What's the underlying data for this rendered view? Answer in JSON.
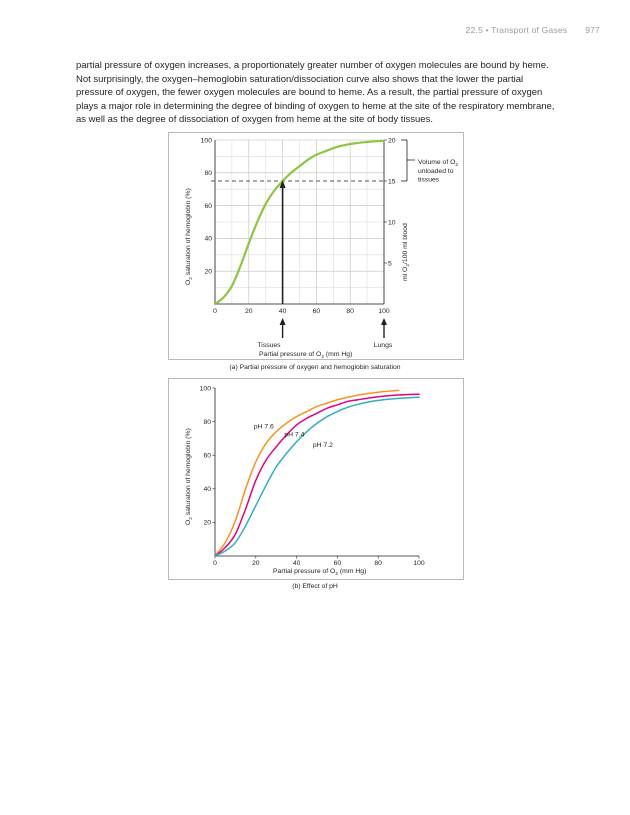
{
  "header": {
    "section": "22.5 • Transport of Gases",
    "page_number": "977"
  },
  "body_text": "partial pressure of oxygen increases, a proportionately greater number of oxygen molecules are bound by heme. Not surprisingly, the oxygen–hemoglobin saturation/dissociation curve also shows that the lower the partial pressure of oxygen, the fewer oxygen molecules are bound to heme. As a result, the partial pressure of oxygen plays a major role in determining the degree of binding of oxygen to heme at the site of the respiratory membrane, as well as the degree of dissociation of oxygen from heme at the site of body tissues.",
  "figure_a": {
    "caption": "(a) Partial pressure of oxygen and hemoglobin saturation",
    "ylabel_main": "O",
    "ylabel_sub": "2",
    "ylabel_rest": " saturation of hemoglobin (%)",
    "y2label_main": "ml O",
    "y2label_sub": "2",
    "y2label_rest": "/100 ml blood",
    "xlabel_main": "Partial pressure of O",
    "xlabel_sub": "2",
    "xlabel_rest": " (mm Hg)",
    "x_ticks": [
      "0",
      "20",
      "40",
      "60",
      "80",
      "100"
    ],
    "y_ticks": [
      "20",
      "40",
      "60",
      "80",
      "100"
    ],
    "y2_ticks": [
      "5",
      "10",
      "15",
      "20"
    ],
    "marker_tissues": "Tissues",
    "marker_lungs": "Lungs",
    "bracket_label_line1": "Volume of O",
    "bracket_label_sub": "2",
    "bracket_label_line2": "unloaded to",
    "bracket_label_line3": "tissues",
    "curve_color": "#8dc63f"
  },
  "figure_b": {
    "caption": "(b) Effect of pH",
    "ylabel_main": "O",
    "ylabel_sub": "2",
    "ylabel_rest": " saturation of hemoglobin (%)",
    "xlabel_main": "Partial pressure of O",
    "xlabel_sub": "2",
    "xlabel_rest": " (mm Hg)",
    "x_ticks": [
      "0",
      "20",
      "40",
      "60",
      "80",
      "100"
    ],
    "y_ticks": [
      "20",
      "40",
      "60",
      "80",
      "100"
    ]
  },
  "chart_data": [
    {
      "type": "line",
      "title": "",
      "xlabel": "Partial pressure of O2 (mm Hg)",
      "ylabel": "O2 saturation of hemoglobin (%)",
      "y2label": "ml O2/100 ml blood",
      "xlim": [
        0,
        100
      ],
      "ylim": [
        0,
        100
      ],
      "y2lim": [
        0,
        20
      ],
      "grid": true,
      "series": [
        {
          "color": "#8dc63f",
          "x": [
            0,
            5,
            10,
            15,
            20,
            25,
            30,
            35,
            40,
            45,
            50,
            55,
            60,
            65,
            70,
            75,
            80,
            85,
            90,
            95,
            100
          ],
          "y": [
            0,
            4,
            11,
            23,
            37,
            50,
            61,
            69,
            75,
            80,
            84,
            88,
            91,
            93,
            95,
            96.5,
            97.5,
            98.3,
            98.8,
            99.2,
            99.5
          ]
        }
      ],
      "reference_line_y": 75,
      "annotations": [
        "Tissues",
        "Lungs",
        "Volume of O2 unloaded to tissues"
      ]
    },
    {
      "type": "line",
      "title": "",
      "xlabel": "Partial pressure of O2 (mm Hg)",
      "ylabel": "O2 saturation of hemoglobin (%)",
      "xlim": [
        0,
        100
      ],
      "ylim": [
        0,
        100
      ],
      "grid": false,
      "series": [
        {
          "name": "pH 7.6",
          "color": "#f7941d",
          "x": [
            0,
            5,
            10,
            15,
            20,
            25,
            30,
            35,
            40,
            45,
            50,
            55,
            60,
            65,
            70,
            75,
            80,
            85,
            90
          ],
          "y": [
            0,
            8,
            21,
            40,
            56,
            67,
            74,
            79,
            83,
            86,
            89,
            91,
            93,
            94.5,
            95.7,
            96.7,
            97.5,
            98.1,
            98.6
          ]
        },
        {
          "name": "pH 7.4",
          "color": "#e6007e",
          "x": [
            0,
            5,
            10,
            15,
            20,
            25,
            30,
            35,
            40,
            45,
            50,
            55,
            60,
            65,
            70,
            75,
            80,
            85,
            90,
            95,
            100
          ],
          "y": [
            0,
            5,
            13,
            28,
            45,
            57,
            65,
            72,
            78,
            82,
            85,
            88,
            90,
            92,
            93,
            94,
            94.8,
            95.4,
            95.8,
            96.1,
            96.3
          ]
        },
        {
          "name": "pH 7.2",
          "color": "#2eafc2",
          "x": [
            0,
            5,
            10,
            15,
            20,
            25,
            30,
            35,
            40,
            45,
            50,
            55,
            60,
            65,
            70,
            75,
            80,
            85,
            90,
            95,
            100
          ],
          "y": [
            0,
            3,
            8,
            18,
            30,
            42,
            53,
            61,
            68,
            74,
            79,
            83,
            86,
            88.5,
            90.3,
            91.6,
            92.6,
            93.3,
            93.8,
            94.2,
            94.5
          ]
        }
      ]
    }
  ]
}
